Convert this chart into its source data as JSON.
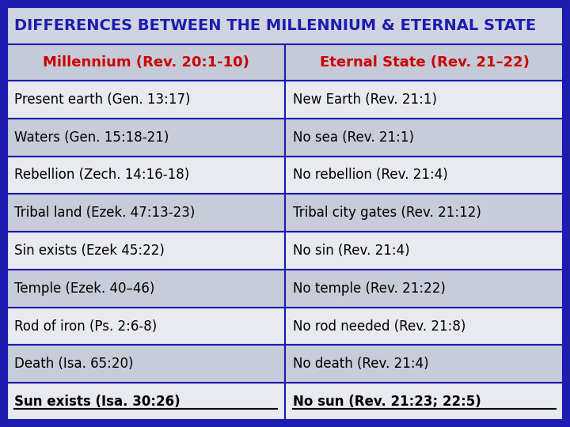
{
  "title": "DIFFERENCES BETWEEN THE MILLENNIUM & ETERNAL STATE",
  "title_color": "#1c1cb0",
  "title_bg": "#d0d4e0",
  "header_col1": "Millennium (Rev. 20:1-10)",
  "header_col2": "Eternal State (Rev. 21–22)",
  "header_color": "#cc0000",
  "header_bg": "#c4cad8",
  "rows": [
    [
      "Present earth (Gen. 13:17)",
      "New Earth (Rev. 21:1)"
    ],
    [
      "Waters (Gen. 15:18-21)",
      "No sea (Rev. 21:1)"
    ],
    [
      "Rebellion (Zech. 14:16-18)",
      "No rebellion (Rev. 21:4)"
    ],
    [
      "Tribal land (Ezek. 47:13-23)",
      "Tribal city gates (Rev. 21:12)"
    ],
    [
      "Sin exists (Ezek 45:22)",
      "No sin (Rev. 21:4)"
    ],
    [
      "Temple (Ezek. 40–46)",
      "No temple (Rev. 21:22)"
    ],
    [
      "Rod of iron (Ps. 2:6-8)",
      "No rod needed (Rev. 21:8)"
    ],
    [
      "Death (Isa. 65:20)",
      "No death (Rev. 21:4)"
    ],
    [
      "Sun exists (Isa. 30:26)",
      "No sun (Rev. 21:23; 22:5)"
    ]
  ],
  "row_bg_light": "#e8eaf0",
  "row_bg_dark": "#c8ccd8",
  "last_row_bold": true,
  "last_row_underline": true,
  "cell_text_color": "#000000",
  "border_color": "#1c1cb0",
  "outer_bg": "#1c1cb0",
  "font_size_title": 14,
  "font_size_header": 13,
  "font_size_rows": 12,
  "fig_width": 7.2,
  "fig_height": 5.4,
  "dpi": 100
}
